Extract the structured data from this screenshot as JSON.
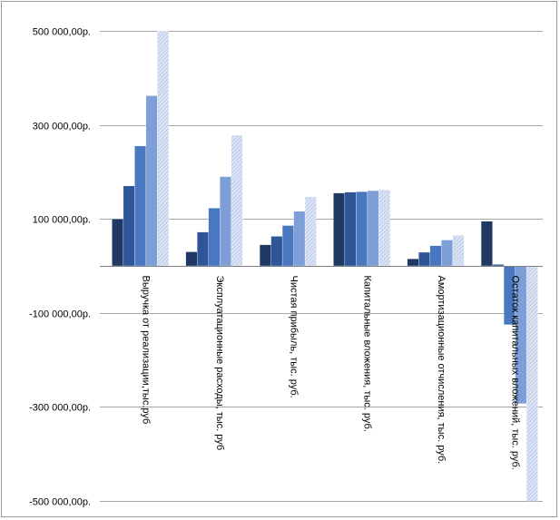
{
  "chart_data": {
    "type": "bar",
    "title": "",
    "xlabel": "",
    "ylabel": "",
    "ylim": [
      -500000,
      500000
    ],
    "y_ticks": [
      500000,
      300000,
      100000,
      -100000,
      -300000,
      -500000
    ],
    "y_tick_labels": [
      "500 000,00р.",
      "300 000,00р.",
      "100 000,00р.",
      "-100 000,00р.",
      "-300 000,00р.",
      "-500 000,00р."
    ],
    "grid": true,
    "legend": "none",
    "categories": [
      "Выручка от реализации,тыс.руб",
      "Эксплуатационные расходы, тыс. руб",
      "Чистая прибыль, тыс. руб.",
      "Капитальные вложения, тыс. руб.",
      "Амортизационные отчисления, тыс. руб.",
      "Остаток капитальных вложений, тыс. руб."
    ],
    "series": [
      {
        "color": "#1f3864",
        "values": [
          100000,
          30000,
          45000,
          155000,
          15000,
          95000
        ]
      },
      {
        "color": "#2e5597",
        "values": [
          170000,
          72000,
          63000,
          157000,
          29000,
          3000
        ]
      },
      {
        "color": "#4a78c0",
        "values": [
          255000,
          123000,
          86000,
          158000,
          43000,
          -125000
        ]
      },
      {
        "color": "#7d9ed6",
        "values": [
          362000,
          190000,
          116000,
          160000,
          55000,
          -293000
        ]
      },
      {
        "color": "#c4d3ef",
        "values": [
          500000,
          278000,
          147000,
          162000,
          65000,
          -500000
        ]
      }
    ]
  }
}
